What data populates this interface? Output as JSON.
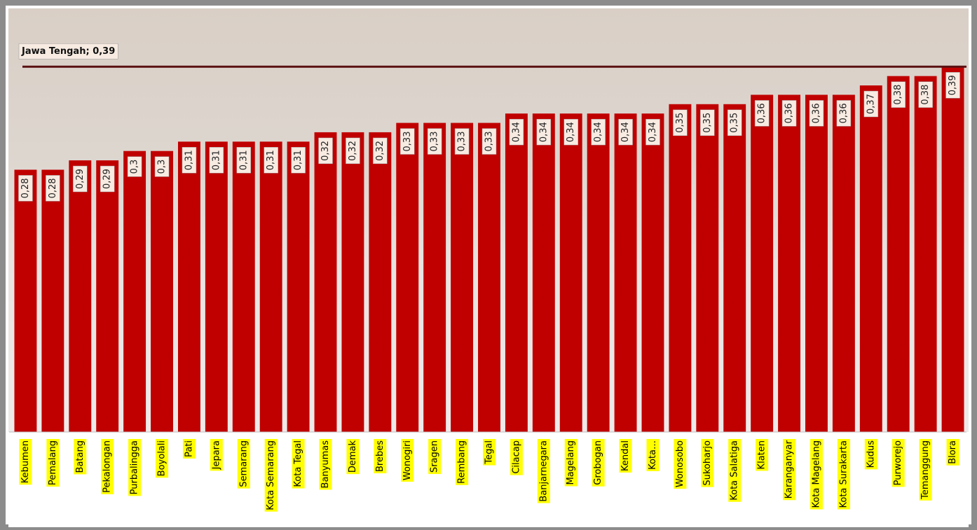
{
  "chart_data": {
    "type": "bar",
    "categories": [
      "Kebumen",
      "Pemalang",
      "Batang",
      "Pekalongan",
      "Purbalingga",
      "Boyolali",
      "Pati",
      "Jepara",
      "Semarang",
      "Kota Semarang",
      "Kota Tegal",
      "Banyumas",
      "Demak",
      "Brebes",
      "Wonogiri",
      "Sragen",
      "Rembang",
      "Tegal",
      "Cilacap",
      "Banjarnegara",
      "Magelang",
      "Grobogan",
      "Kendal",
      "Kota…",
      "Wonosobo",
      "Sukoharjo",
      "Kota Salatiga",
      "Klaten",
      "Karanganyar",
      "Kota Magelang",
      "Kota Surakarta",
      "Kudus",
      "Purworejo",
      "Temanggung",
      "Blora"
    ],
    "values": [
      0.28,
      0.28,
      0.29,
      0.29,
      0.3,
      0.3,
      0.31,
      0.31,
      0.31,
      0.31,
      0.31,
      0.32,
      0.32,
      0.32,
      0.33,
      0.33,
      0.33,
      0.33,
      0.34,
      0.34,
      0.34,
      0.34,
      0.34,
      0.34,
      0.35,
      0.35,
      0.35,
      0.36,
      0.36,
      0.36,
      0.36,
      0.37,
      0.38,
      0.38,
      0.39
    ],
    "value_labels": [
      "0,28",
      "0,28",
      "0,29",
      "0,29",
      "0,3",
      "0,3",
      "0,31",
      "0,31",
      "0,31",
      "0,31",
      "0,31",
      "0,32",
      "0,32",
      "0,32",
      "0,33",
      "0,33",
      "0,33",
      "0,33",
      "0,34",
      "0,34",
      "0,34",
      "0,34",
      "0,34",
      "0,34",
      "0,35",
      "0,35",
      "0,35",
      "0,36",
      "0,36",
      "0,36",
      "0,36",
      "0,37",
      "0,38",
      "0,38",
      "0,39"
    ],
    "color": "#c00000",
    "ylim": [
      0,
      0.45
    ],
    "reference_line": {
      "label": "Jawa Tengah; 0,39",
      "value": 0.39,
      "color": "#5a1010"
    }
  }
}
